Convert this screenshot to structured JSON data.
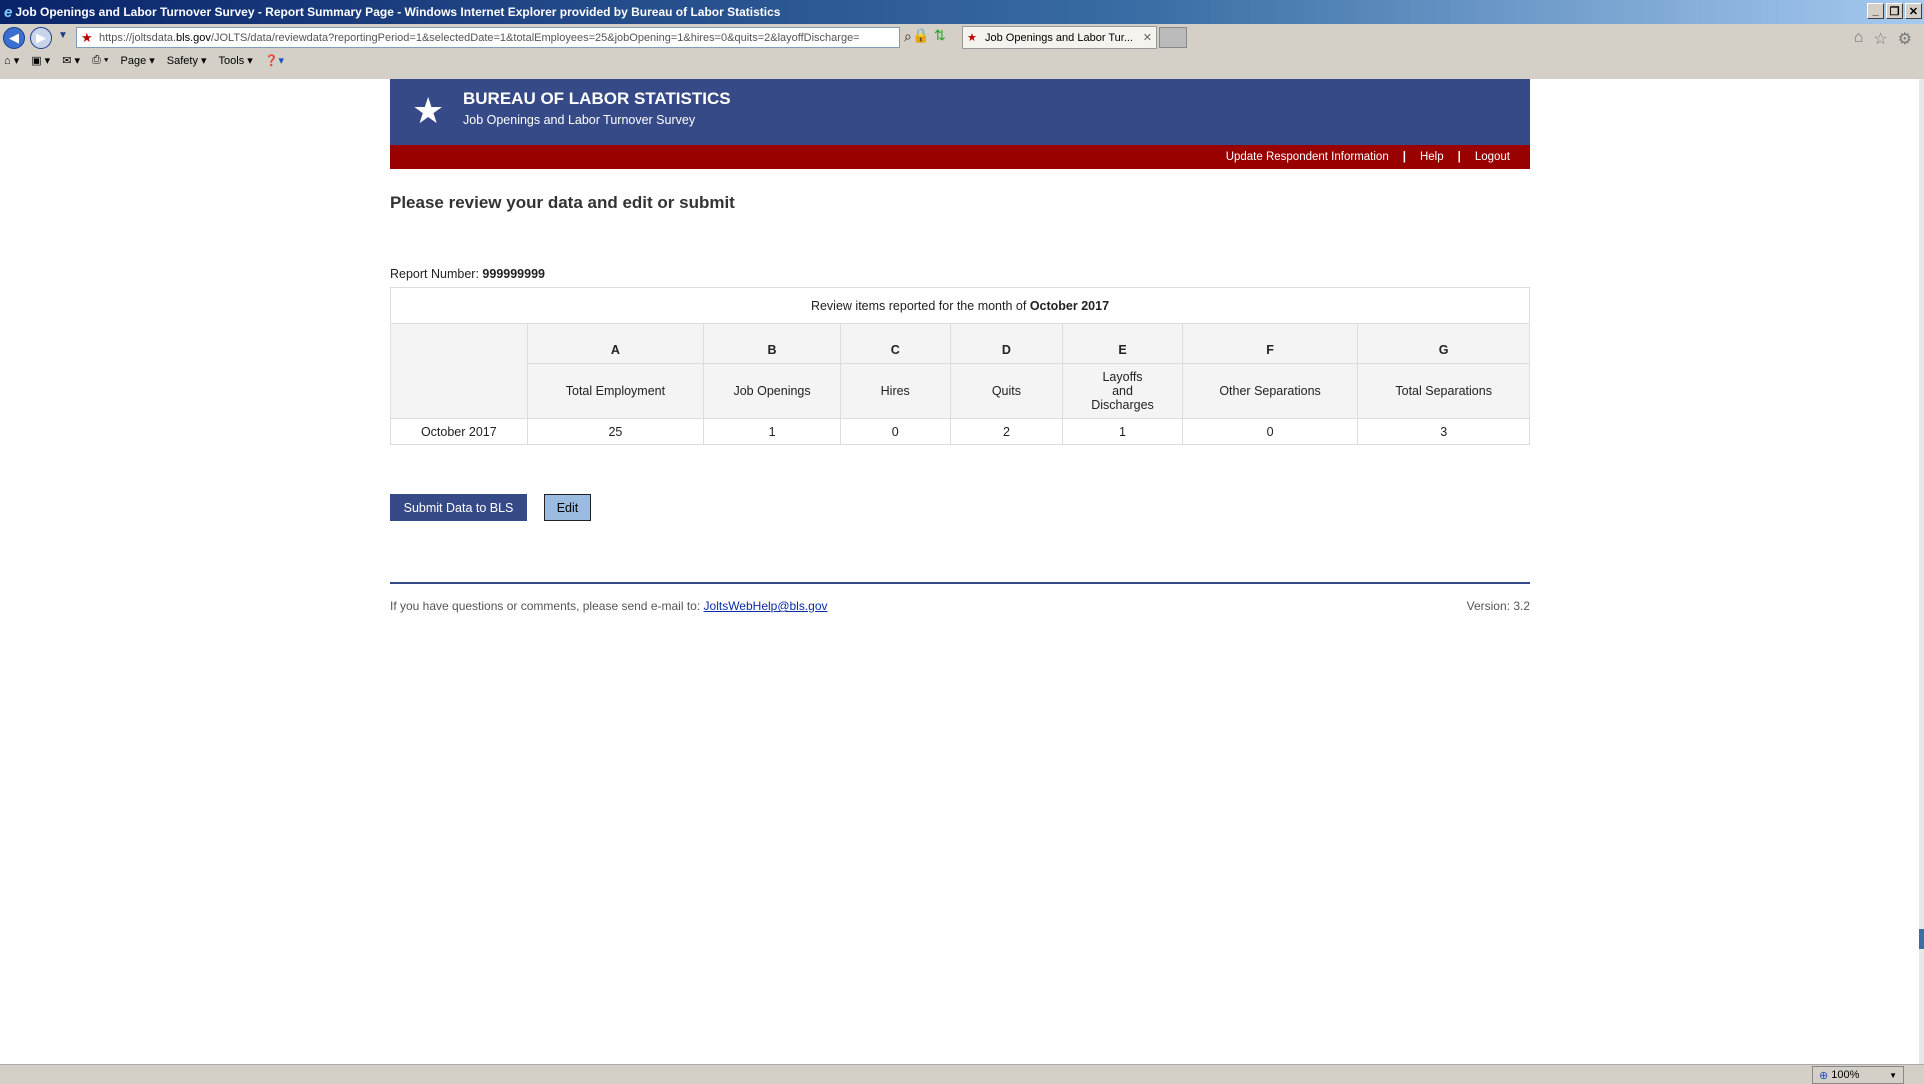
{
  "window": {
    "title": "Job Openings and Labor Turnover Survey - Report Summary Page - Windows Internet Explorer provided by Bureau of Labor Statistics"
  },
  "browser": {
    "url_prefix": "https://joltsdata.",
    "url_domain": "bls.gov",
    "url_rest": "/JOLTS/data/reviewdata?reportingPeriod=1&selectedDate=1&totalEmployees=25&jobOpening=1&hires=0&quits=2&layoffDischarge=",
    "tab_title": "Job Openings and Labor Tur...",
    "menu": [
      "Page",
      "Safety",
      "Tools"
    ],
    "zoom": "100%"
  },
  "header": {
    "org": "BUREAU OF LABOR STATISTICS",
    "survey": "Job Openings and Labor Turnover Survey",
    "links": [
      "Update Respondent Information",
      "Help",
      "Logout"
    ]
  },
  "page": {
    "title": "Please review your data and edit or submit",
    "report_label": "Report Number:",
    "report_number": "999999999",
    "caption_prefix": "Review items reported for the month of",
    "caption_month": "October 2017"
  },
  "table": {
    "letters": [
      "A",
      "B",
      "C",
      "D",
      "E",
      "F",
      "G"
    ],
    "columns": [
      "Total Employment",
      "Job Openings",
      "Hires",
      "Quits",
      "Layoffs and Discharges",
      "Other Separations",
      "Total Separations"
    ],
    "row": {
      "label": "October 2017",
      "values": [
        "25",
        "1",
        "0",
        "2",
        "1",
        "0",
        "3"
      ]
    }
  },
  "buttons": {
    "submit": "Submit Data to BLS",
    "edit": "Edit"
  },
  "footer": {
    "text": "If you have questions or comments, please send e-mail to:",
    "email": "JoltsWebHelp@bls.gov",
    "version": "Version: 3.2"
  },
  "colors": {
    "header_blue": "#364a87",
    "red_bar": "#990000",
    "edit_button": "#9bbbe0"
  }
}
